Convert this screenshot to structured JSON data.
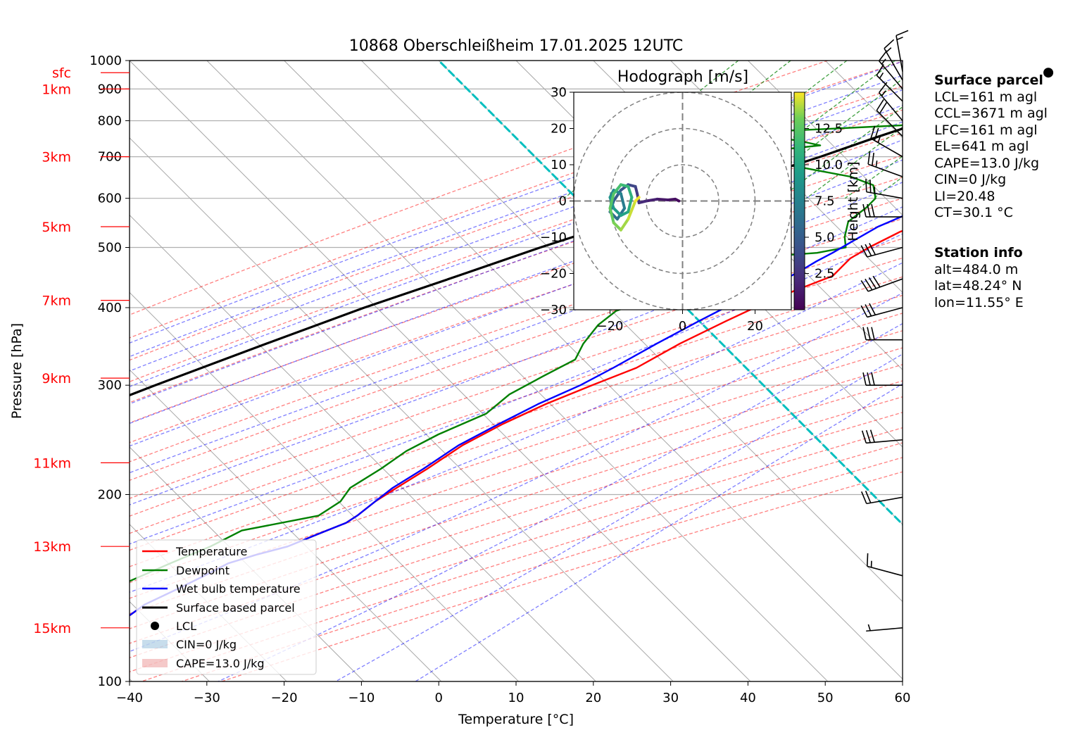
{
  "chart_data": {
    "type": "line",
    "title": "10868 Oberschleißheim 17.01.2025 12UTC",
    "xlabel": "Temperature [°C]",
    "ylabel": "Pressure [hPa]",
    "xlim": [
      -40,
      60
    ],
    "ylim": [
      1000,
      100
    ],
    "x_ticks": [
      "−40",
      "−30",
      "−20",
      "−10",
      "0",
      "10",
      "20",
      "30",
      "40",
      "50",
      "60"
    ],
    "y_ticks": [
      "100",
      "200",
      "300",
      "400",
      "500",
      "600",
      "700",
      "800",
      "900",
      "1000"
    ],
    "y_scale": "log",
    "skew": true,
    "height_labels": [
      {
        "label": "15km",
        "p": 122
      },
      {
        "label": "13km",
        "p": 165
      },
      {
        "label": "11km",
        "p": 225
      },
      {
        "label": "9km",
        "p": 308
      },
      {
        "label": "7km",
        "p": 411
      },
      {
        "label": "5km",
        "p": 540
      },
      {
        "label": "3km",
        "p": 700
      },
      {
        "label": "1km",
        "p": 900
      },
      {
        "label": "sfc",
        "p": 956
      }
    ],
    "series": [
      {
        "name": "Temperature",
        "color": "#ff0000",
        "points": [
          [
            0.6,
            960
          ],
          [
            1.3,
            940
          ],
          [
            3.5,
            915
          ],
          [
            6.5,
            900
          ],
          [
            8.5,
            885
          ],
          [
            10.5,
            860
          ],
          [
            10.2,
            830
          ],
          [
            8.8,
            800
          ],
          [
            9.6,
            760
          ],
          [
            8.5,
            730
          ],
          [
            9.0,
            700
          ],
          [
            8.5,
            680
          ],
          [
            7.5,
            640
          ],
          [
            7.0,
            610
          ],
          [
            7.5,
            580
          ],
          [
            5.5,
            560
          ],
          [
            1.5,
            530
          ],
          [
            -0.5,
            500
          ],
          [
            -1.5,
            480
          ],
          [
            -1.5,
            465
          ],
          [
            -1.5,
            450
          ],
          [
            -4.0,
            430
          ],
          [
            -6.5,
            410
          ],
          [
            -9.5,
            380
          ],
          [
            -12.5,
            350
          ],
          [
            -15.0,
            320
          ],
          [
            -18.5,
            300
          ],
          [
            -22.0,
            280
          ],
          [
            -25.0,
            260
          ],
          [
            -27.5,
            240
          ],
          [
            -29.0,
            220
          ],
          [
            -30.5,
            205
          ],
          [
            -31.5,
            195
          ],
          [
            -32.0,
            185
          ],
          [
            -32.5,
            180
          ],
          [
            -34.0,
            175
          ],
          [
            -35.5,
            170
          ],
          [
            -37.0,
            165
          ],
          [
            -40.0,
            160
          ],
          [
            -42.5,
            155
          ],
          [
            -44.0,
            148
          ],
          [
            -46.0,
            140
          ],
          [
            -48.0,
            133
          ],
          [
            -48.5,
            128
          ],
          [
            -50.0,
            120
          ]
        ]
      },
      {
        "name": "Dewpoint",
        "color": "#008000",
        "points": [
          [
            0.2,
            960
          ],
          [
            -0.5,
            940
          ],
          [
            -2.0,
            920
          ],
          [
            -4.0,
            905
          ],
          [
            -9.0,
            880
          ],
          [
            -10.5,
            855
          ],
          [
            -9.5,
            830
          ],
          [
            -8.5,
            810
          ],
          [
            -9.0,
            790
          ],
          [
            -22.0,
            775
          ],
          [
            -38.0,
            760
          ],
          [
            -24.0,
            745
          ],
          [
            -20.0,
            730
          ],
          [
            -24.0,
            720
          ],
          [
            -38.0,
            700
          ],
          [
            -22.0,
            680
          ],
          [
            -12.0,
            650
          ],
          [
            -8.0,
            630
          ],
          [
            -6.0,
            600
          ],
          [
            -6.0,
            580
          ],
          [
            -6.5,
            550
          ],
          [
            -5.0,
            520
          ],
          [
            -3.5,
            500
          ],
          [
            -6.5,
            490
          ],
          [
            -21.0,
            475
          ],
          [
            -25.5,
            460
          ],
          [
            -28.0,
            440
          ],
          [
            -22.0,
            415
          ],
          [
            -25.0,
            395
          ],
          [
            -25.5,
            375
          ],
          [
            -25.0,
            350
          ],
          [
            -24.0,
            330
          ],
          [
            -26.0,
            310
          ],
          [
            -28.0,
            290
          ],
          [
            -28.5,
            270
          ],
          [
            -32.0,
            250
          ],
          [
            -34.0,
            235
          ],
          [
            -35.0,
            220
          ],
          [
            -36.5,
            205
          ],
          [
            -36.0,
            195
          ],
          [
            -37.0,
            185
          ],
          [
            -45.0,
            175
          ],
          [
            -47.0,
            165
          ],
          [
            -50.0,
            155
          ],
          [
            -53.0,
            145
          ],
          [
            -56.0,
            135
          ],
          [
            -58.0,
            125
          ],
          [
            -60.0,
            120
          ]
        ]
      },
      {
        "name": "Wet bulb temperature",
        "color": "#0000ff",
        "points": [
          [
            0.4,
            960
          ],
          [
            1.0,
            940
          ],
          [
            2.5,
            915
          ],
          [
            5.0,
            900
          ],
          [
            5.5,
            880
          ],
          [
            4.5,
            855
          ],
          [
            4.0,
            830
          ],
          [
            3.0,
            800
          ],
          [
            3.0,
            760
          ],
          [
            2.0,
            730
          ],
          [
            1.5,
            700
          ],
          [
            1.5,
            680
          ],
          [
            1.5,
            650
          ],
          [
            1.5,
            620
          ],
          [
            1.8,
            600
          ],
          [
            0.5,
            570
          ],
          [
            -2.0,
            540
          ],
          [
            -3.5,
            510
          ],
          [
            -4.5,
            490
          ],
          [
            -5.5,
            475
          ],
          [
            -6.5,
            455
          ],
          [
            -8.5,
            430
          ],
          [
            -10.5,
            410
          ],
          [
            -13.0,
            380
          ],
          [
            -15.5,
            350
          ],
          [
            -18.0,
            320
          ],
          [
            -20.0,
            300
          ],
          [
            -23.0,
            280
          ],
          [
            -25.5,
            260
          ],
          [
            -28.0,
            240
          ],
          [
            -29.5,
            220
          ],
          [
            -31.0,
            205
          ],
          [
            -31.5,
            195
          ],
          [
            -32.0,
            185
          ],
          [
            -32.5,
            180
          ],
          [
            -34.0,
            175
          ],
          [
            -35.5,
            170
          ],
          [
            -37.0,
            165
          ],
          [
            -40.0,
            160
          ],
          [
            -42.5,
            155
          ],
          [
            -44.0,
            148
          ],
          [
            -46.0,
            140
          ],
          [
            -48.0,
            133
          ],
          [
            -48.5,
            128
          ],
          [
            -50.0,
            120
          ]
        ]
      },
      {
        "name": "Surface based parcel",
        "color": "#000000",
        "points": [
          [
            0.5,
            960
          ],
          [
            -2.0,
            900
          ],
          [
            -5.5,
            850
          ],
          [
            -9.5,
            800
          ],
          [
            -14.0,
            750
          ],
          [
            -18.5,
            700
          ],
          [
            -24.0,
            650
          ],
          [
            -30.0,
            600
          ],
          [
            -36.0,
            550
          ],
          [
            -43.0,
            500
          ],
          [
            -50.0,
            450
          ],
          [
            -58.0,
            400
          ],
          [
            -66.0,
            350
          ],
          [
            -75.0,
            300
          ],
          [
            -85.0,
            250
          ],
          [
            -94.0,
            213
          ]
        ]
      }
    ],
    "lcl": {
      "label": "LCL",
      "t": 0.1,
      "p": 956
    },
    "legend": {
      "placement": "lower-left",
      "entries": [
        "Temperature",
        "Dewpoint",
        "Wet bulb temperature",
        "Surface based parcel",
        "LCL",
        "CIN=0 J/kg",
        "CAPE=13.0 J/kg"
      ]
    },
    "hodograph": {
      "title": "Hodograph [m/s]",
      "xlim": [
        -30,
        30
      ],
      "ylim": [
        -30,
        30
      ],
      "x_ticks": [
        "−20",
        "0",
        "20"
      ],
      "y_ticks": [
        "30",
        "20",
        "10",
        "0",
        "−10",
        "−20",
        "−30"
      ],
      "colorbar_label": "Height [km]",
      "colorbar_ticks": [
        "2.5",
        "5.0",
        "7.5",
        "10.0",
        "12.5"
      ],
      "colorbar_range": [
        0,
        15
      ],
      "ring_radii": [
        10,
        20,
        30
      ],
      "trace": [
        [
          -1,
          0,
          0.3
        ],
        [
          -2,
          0.5,
          0.6
        ],
        [
          -4,
          0.3,
          0.9
        ],
        [
          -7,
          0.5,
          1.3
        ],
        [
          -10,
          0,
          1.8
        ],
        [
          -12,
          -0.5,
          2.3
        ],
        [
          -12.5,
          2,
          2.8
        ],
        [
          -13,
          4,
          3.3
        ],
        [
          -15,
          4.5,
          4.0
        ],
        [
          -17,
          3,
          4.6
        ],
        [
          -19,
          0,
          5.2
        ],
        [
          -20,
          -3,
          5.8
        ],
        [
          -18,
          -5,
          6.3
        ],
        [
          -16,
          -2,
          6.8
        ],
        [
          -17,
          2,
          7.3
        ],
        [
          -19,
          3,
          7.9
        ],
        [
          -20,
          1,
          8.5
        ],
        [
          -19,
          -2,
          9.0
        ],
        [
          -17,
          -4,
          9.5
        ],
        [
          -15,
          -3,
          10.0
        ],
        [
          -14,
          1,
          10.6
        ],
        [
          -15,
          4,
          11.1
        ],
        [
          -17,
          4.5,
          11.6
        ],
        [
          -19,
          2,
          12.1
        ],
        [
          -20,
          -2,
          12.6
        ],
        [
          -19,
          -6,
          13.1
        ],
        [
          -17,
          -8,
          13.6
        ],
        [
          -15,
          -5,
          14.1
        ],
        [
          -13,
          0,
          14.6
        ],
        [
          -12,
          1,
          15.0
        ]
      ]
    },
    "wind_barbs": [
      {
        "p": 122,
        "dir": 265,
        "kt": 5
      },
      {
        "p": 148,
        "dir": 285,
        "kt": 15
      },
      {
        "p": 198,
        "dir": 260,
        "kt": 20
      },
      {
        "p": 245,
        "dir": 265,
        "kt": 30
      },
      {
        "p": 300,
        "dir": 270,
        "kt": 30
      },
      {
        "p": 355,
        "dir": 270,
        "kt": 30
      },
      {
        "p": 400,
        "dir": 255,
        "kt": 30
      },
      {
        "p": 445,
        "dir": 250,
        "kt": 40
      },
      {
        "p": 500,
        "dir": 255,
        "kt": 30
      },
      {
        "p": 560,
        "dir": 270,
        "kt": 30
      },
      {
        "p": 600,
        "dir": 280,
        "kt": 25
      },
      {
        "p": 650,
        "dir": 290,
        "kt": 25
      },
      {
        "p": 700,
        "dir": 300,
        "kt": 25
      },
      {
        "p": 755,
        "dir": 315,
        "kt": 20
      },
      {
        "p": 800,
        "dir": 320,
        "kt": 15
      },
      {
        "p": 860,
        "dir": 315,
        "kt": 15
      },
      {
        "p": 900,
        "dir": 320,
        "kt": 15
      },
      {
        "p": 930,
        "dir": 330,
        "kt": 15
      },
      {
        "p": 960,
        "dir": 350,
        "kt": 15
      }
    ]
  },
  "info": {
    "surface_header": "Surface parcel",
    "surface_lines": [
      "LCL=161 m agl",
      "CCL=3671 m agl",
      "LFC=161 m agl",
      "EL=641 m agl",
      "CAPE=13.0 J/kg",
      "CIN=0 J/kg",
      "LI=20.48",
      "CT=30.1 °C"
    ],
    "station_header": "Station info",
    "station_lines": [
      "alt=484.0 m",
      "lat=48.24° N",
      "lon=11.55° E"
    ]
  }
}
